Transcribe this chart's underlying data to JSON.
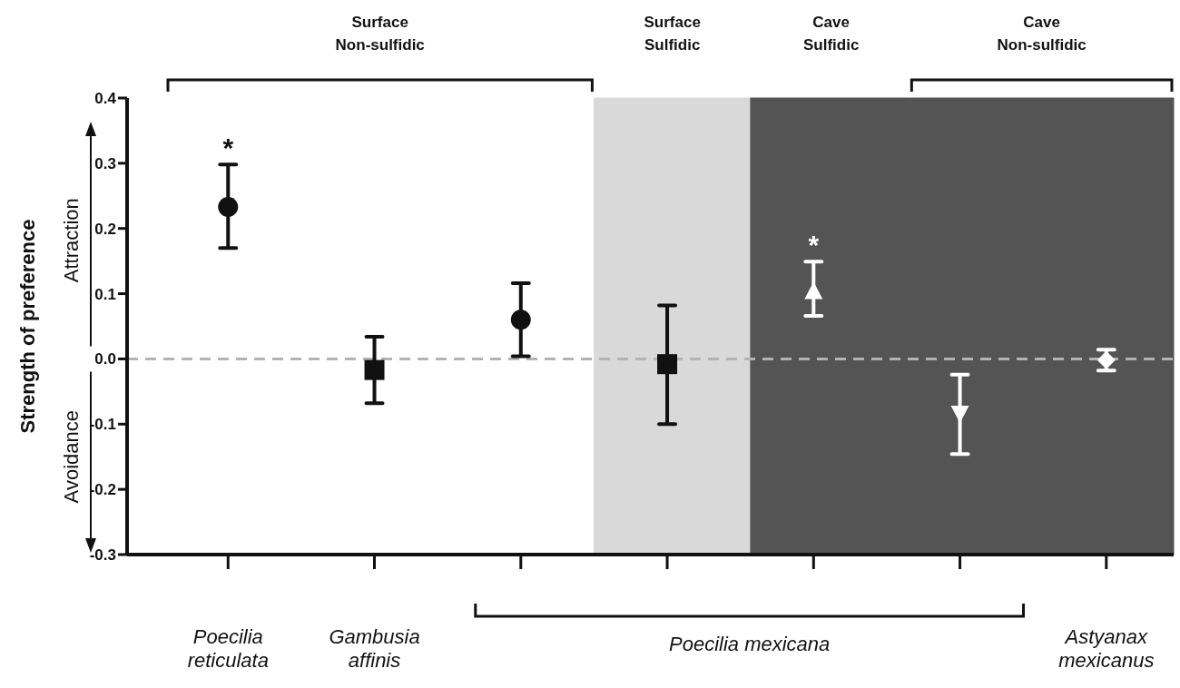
{
  "chart_data": {
    "type": "scatter",
    "ylabel": "Strength of preference",
    "categories": [
      "Poecilia reticulata",
      "Gambusia affinis",
      null,
      null,
      null,
      null,
      "Astyanax mexicanus"
    ],
    "ylim": [
      -0.3,
      0.4
    ],
    "yticks": [
      -0.3,
      -0.2,
      -0.1,
      {
        "value": 0,
        "label": "0.0"
      },
      0.1,
      0.2,
      0.3,
      0.4
    ],
    "series": [
      {
        "color": "#111111",
        "marker": "circle",
        "values": [
          0.233,
          null,
          0.06,
          null,
          null,
          null,
          null
        ],
        "errors": [
          [
            0.17,
            0.298
          ],
          null,
          [
            0.004,
            0.116
          ],
          null,
          null,
          null,
          null
        ]
      },
      {
        "color": "#111111",
        "marker": "square",
        "values": [
          null,
          -0.017,
          null,
          -0.008,
          null,
          null,
          null
        ],
        "errors": [
          null,
          [
            -0.068,
            0.034
          ],
          null,
          [
            -0.1,
            0.082
          ],
          null,
          null,
          null
        ]
      },
      {
        "color": "#ffffff",
        "marker": "triangle",
        "values": [
          null,
          null,
          null,
          null,
          0.103,
          null,
          null
        ],
        "errors": [
          null,
          null,
          null,
          null,
          [
            0.066,
            0.149
          ],
          null,
          null
        ]
      },
      {
        "color": "#ffffff",
        "marker": "triangle",
        "values": [
          null,
          null,
          null,
          null,
          null,
          -0.083,
          null
        ],
        "errors": [
          null,
          null,
          null,
          null,
          null,
          [
            -0.146,
            -0.024
          ],
          null
        ]
      },
      {
        "color": "#ffffff",
        "marker": "diamond",
        "values": [
          null,
          null,
          null,
          null,
          null,
          null,
          -0.002
        ],
        "errors": [
          null,
          null,
          null,
          null,
          null,
          null,
          [
            -0.018,
            0.014
          ]
        ]
      }
    ],
    "ref_lines": [
      {
        "axis": "y",
        "value": 0,
        "color": "#b3b3b3",
        "line_style": "dashed"
      }
    ],
    "annotations": [
      "Surface Non-sulfidic",
      "Surface Sulfidic",
      "Cave Sulfidic",
      "Cave Non-sulfidic",
      "Attraction",
      "Avoidance",
      "Poecilia mexicana",
      {
        "text": "*",
        "x": "Poecilia reticulata",
        "y": 0.298
      },
      {
        "text": "*",
        "y": 0.149
      }
    ],
    "grid": false,
    "legend": false
  }
}
